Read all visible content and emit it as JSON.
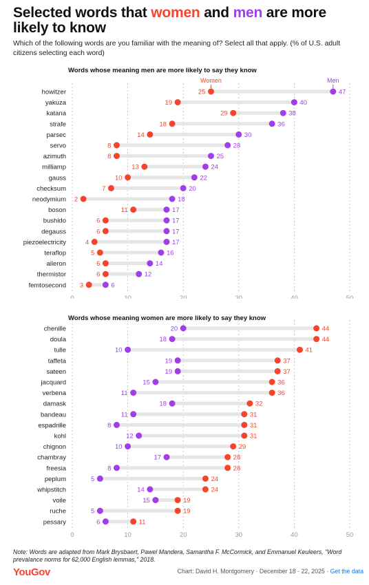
{
  "header": {
    "title_part1": "Selected words that ",
    "title_women": "women",
    "title_part2": " and ",
    "title_men": "men",
    "title_part3": " are more likely to know",
    "subtitle": "Which of the following words are you familiar with the meaning of? Select all that apply. (% of U.S. adult citizens selecting each word)"
  },
  "colors": {
    "women": "#f4452e",
    "men": "#a03ee8",
    "track": "#e6e6e6"
  },
  "chart_data": [
    {
      "type": "dumbbell",
      "title": "Words whose meaning men are more likely to say they know",
      "legend": {
        "women": "Women",
        "men": "Men"
      },
      "xlim": [
        0,
        50
      ],
      "xticks": [
        0,
        10,
        20,
        30,
        40,
        50
      ],
      "categories": [
        "howitzer",
        "yakuza",
        "katana",
        "strafe",
        "parsec",
        "servo",
        "azimuth",
        "milliamp",
        "gauss",
        "checksum",
        "neodymium",
        "boson",
        "bushido",
        "degauss",
        "piezoelectricity",
        "teraflop",
        "aileron",
        "thermistor",
        "femtosecond"
      ],
      "series": [
        {
          "name": "Women",
          "values": [
            25,
            19,
            29,
            18,
            14,
            8,
            8,
            13,
            10,
            7,
            2,
            11,
            6,
            6,
            4,
            5,
            6,
            6,
            3
          ]
        },
        {
          "name": "Men",
          "values": [
            47,
            40,
            38,
            36,
            30,
            28,
            25,
            24,
            22,
            20,
            18,
            17,
            17,
            17,
            17,
            16,
            14,
            12,
            6
          ]
        }
      ]
    },
    {
      "type": "dumbbell",
      "title": "Words whose meaning women are more likely to say they know",
      "xlim": [
        0,
        50
      ],
      "xticks": [
        0,
        10,
        20,
        30,
        40,
        50
      ],
      "categories": [
        "chenille",
        "doula",
        "tulle",
        "taffeta",
        "sateen",
        "jacquard",
        "verbena",
        "damask",
        "bandeau",
        "espadrille",
        "kohl",
        "chignon",
        "chambray",
        "freesia",
        "peplum",
        "whipstitch",
        "voile",
        "ruche",
        "pessary"
      ],
      "series": [
        {
          "name": "Women",
          "values": [
            44,
            44,
            41,
            37,
            37,
            36,
            36,
            32,
            31,
            31,
            31,
            29,
            28,
            28,
            24,
            24,
            19,
            19,
            11
          ]
        },
        {
          "name": "Men",
          "values": [
            20,
            18,
            10,
            19,
            19,
            15,
            11,
            18,
            11,
            8,
            12,
            10,
            17,
            8,
            5,
            14,
            15,
            5,
            6
          ]
        }
      ]
    }
  ],
  "footer": {
    "note": "Note: Words are adapted from Mark Brysbaert, Pawel Mandera, Samantha F. McCormick, and Emmanuel Keuleers, \"Word prevalance norms for 62,000 English lemmas,\" 2018.",
    "logo": "YouGov",
    "credit": "Chart: David H. Montgomery · December 18 - 22, 2025 · ",
    "link": "Get the data"
  }
}
